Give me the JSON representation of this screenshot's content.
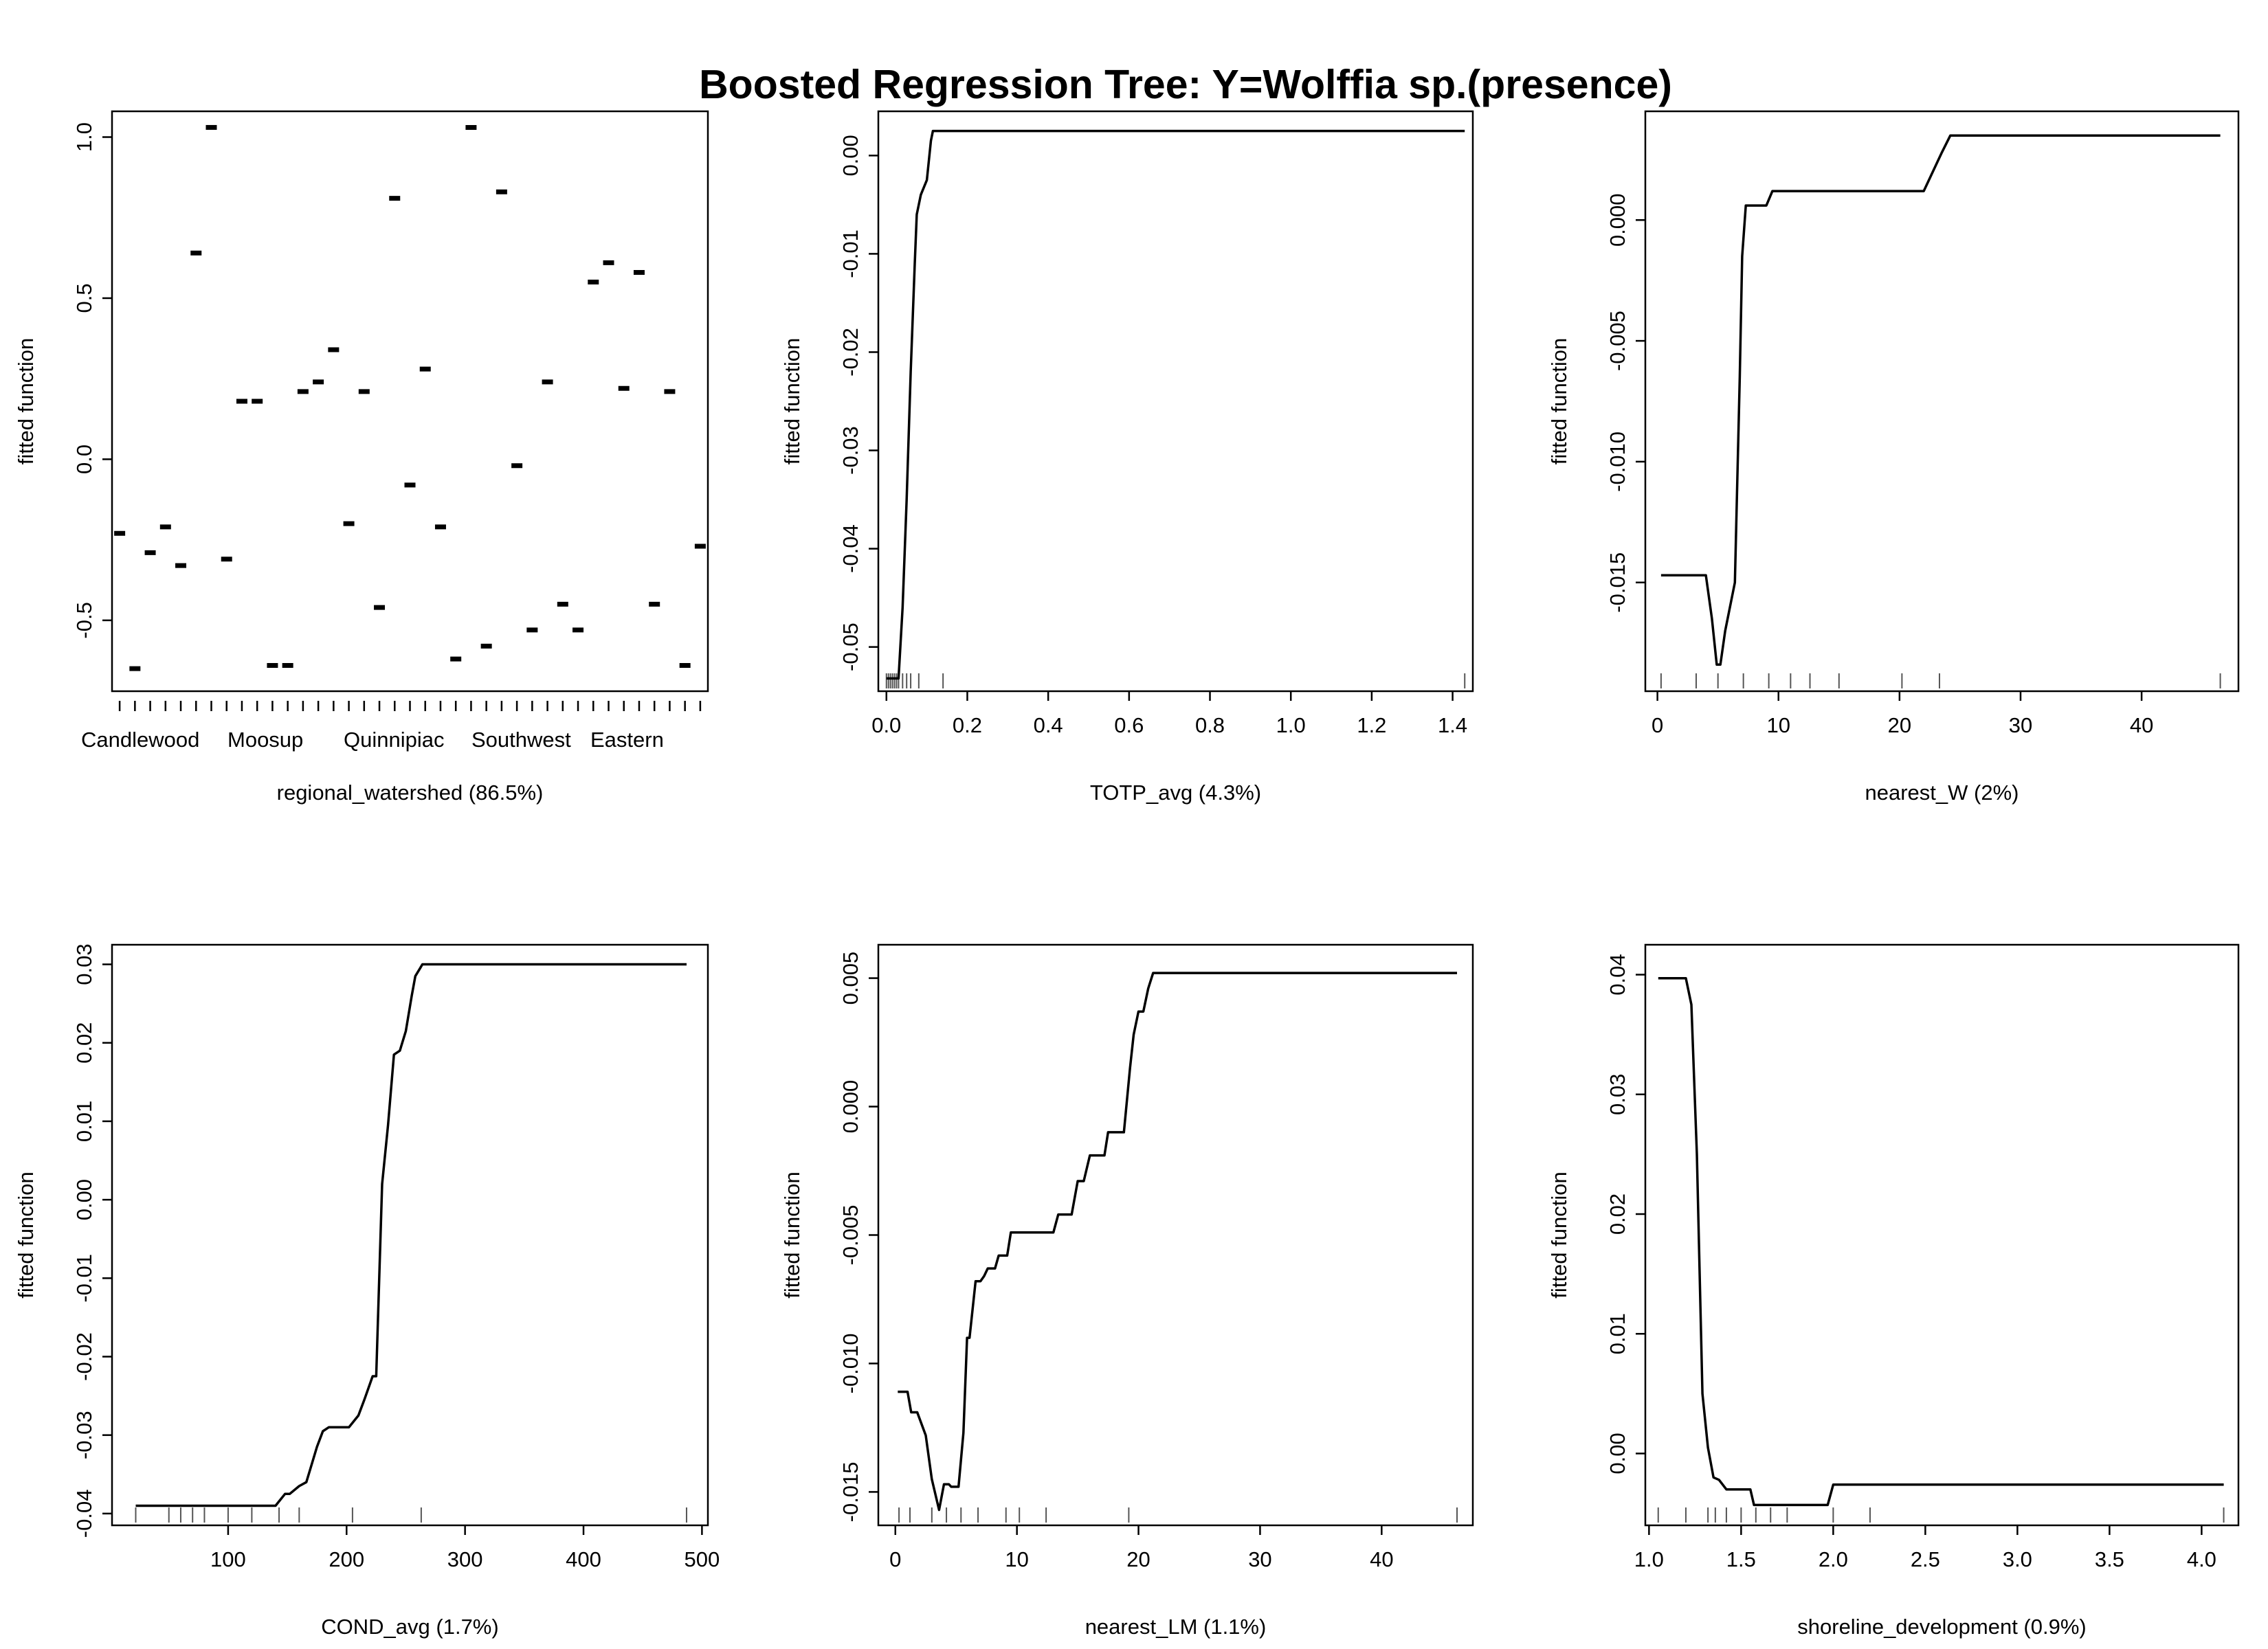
{
  "title": "Boosted Regression Tree: Y=Wolffia sp.(presence)",
  "y_axis_label": "fitted function",
  "chart_data": [
    {
      "type": "scatter",
      "xlabel": "regional_watershed  (86.5%)",
      "ylabel": "fitted function",
      "ylim": [
        -0.72,
        1.08
      ],
      "yticks": [
        -0.5,
        0.0,
        0.5,
        1.0
      ],
      "ytick_labels": [
        "-0.5",
        "0.0",
        "0.5",
        "1.0"
      ],
      "category_labels": [
        "Candlewood",
        "Moosup",
        "Quinnipiac",
        "Southwest",
        "Eastern"
      ],
      "values": [
        -0.23,
        -0.65,
        -0.29,
        -0.21,
        -0.33,
        0.64,
        1.03,
        -0.31,
        0.18,
        0.18,
        -0.64,
        -0.64,
        0.21,
        0.24,
        0.34,
        -0.2,
        0.21,
        -0.46,
        0.81,
        -0.08,
        0.28,
        -0.21,
        -0.62,
        1.03,
        -0.58,
        0.83,
        -0.02,
        -0.53,
        0.24,
        -0.45,
        -0.53,
        0.55,
        0.61,
        0.22,
        0.58,
        -0.45,
        0.21,
        -0.64,
        -0.27
      ]
    },
    {
      "type": "line",
      "xlabel": "TOTP_avg  (4.3%)",
      "ylabel": "fitted function",
      "xlim": [
        -0.02,
        1.45
      ],
      "ylim": [
        -0.0545,
        0.0045
      ],
      "xticks": [
        0.0,
        0.2,
        0.4,
        0.6,
        0.8,
        1.0,
        1.2,
        1.4
      ],
      "xtick_labels": [
        "0.0",
        "0.2",
        "0.4",
        "0.6",
        "0.8",
        "1.0",
        "1.2",
        "1.4"
      ],
      "yticks": [
        -0.05,
        -0.04,
        -0.03,
        -0.02,
        -0.01,
        0.0
      ],
      "ytick_labels": [
        "-0.05",
        "-0.04",
        "-0.03",
        "-0.02",
        "-0.01",
        "0.00"
      ],
      "x": [
        0.0,
        0.03,
        0.04,
        0.05,
        0.06,
        0.07,
        0.075,
        0.085,
        0.1,
        0.11,
        0.115,
        1.43
      ],
      "y": [
        -0.0532,
        -0.0532,
        -0.046,
        -0.035,
        -0.022,
        -0.011,
        -0.006,
        -0.004,
        -0.0025,
        0.0015,
        0.0025,
        0.0025
      ],
      "rug": [
        0.0,
        0.005,
        0.01,
        0.015,
        0.02,
        0.025,
        0.03,
        0.04,
        0.05,
        0.06,
        0.08,
        0.14,
        1.43
      ]
    },
    {
      "type": "line",
      "xlabel": "nearest_W  (2%)",
      "ylabel": "fitted function",
      "xlim": [
        -1,
        48
      ],
      "ylim": [
        -0.0195,
        0.0045
      ],
      "xticks": [
        0,
        10,
        20,
        30,
        40
      ],
      "xtick_labels": [
        "0",
        "10",
        "20",
        "30",
        "40"
      ],
      "yticks": [
        -0.015,
        -0.01,
        -0.005,
        0.0
      ],
      "ytick_labels": [
        "-0.015",
        "-0.010",
        "-0.005",
        "0.000"
      ],
      "x": [
        0.3,
        4.0,
        4.5,
        4.9,
        5.2,
        5.6,
        6.4,
        6.8,
        7.0,
        7.3,
        8.0,
        9.0,
        9.5,
        12,
        20,
        22,
        23.5,
        24.2,
        46.5
      ],
      "y": [
        -0.0147,
        -0.0147,
        -0.0165,
        -0.0184,
        -0.0184,
        -0.017,
        -0.015,
        -0.0065,
        -0.0015,
        0.0006,
        0.0006,
        0.0006,
        0.0012,
        0.0012,
        0.0012,
        0.0012,
        0.0028,
        0.0035,
        0.0035
      ],
      "rug": [
        0.3,
        3.2,
        5.0,
        7.1,
        9.2,
        11.0,
        12.6,
        15.0,
        20.2,
        23.3,
        46.5
      ]
    },
    {
      "type": "line",
      "xlabel": "COND_avg  (1.7%)",
      "ylabel": "fitted function",
      "xlim": [
        2,
        505
      ],
      "ylim": [
        -0.0415,
        0.0325
      ],
      "xticks": [
        100,
        200,
        300,
        400,
        500
      ],
      "xtick_labels": [
        "100",
        "200",
        "300",
        "400",
        "500"
      ],
      "yticks": [
        -0.04,
        -0.03,
        -0.02,
        -0.01,
        0.0,
        0.01,
        0.02,
        0.03
      ],
      "ytick_labels": [
        "-0.04",
        "-0.03",
        "-0.02",
        "-0.01",
        "0.00",
        "0.01",
        "0.02",
        "0.03"
      ],
      "x": [
        22,
        140,
        148,
        152,
        160,
        166,
        170,
        175,
        180,
        185,
        202,
        210,
        215,
        222,
        225,
        230,
        235,
        240,
        245,
        250,
        255,
        258,
        262,
        264,
        268,
        487
      ],
      "y": [
        -0.039,
        -0.039,
        -0.0375,
        -0.0375,
        -0.0365,
        -0.036,
        -0.034,
        -0.0315,
        -0.0295,
        -0.029,
        -0.029,
        -0.0275,
        -0.0255,
        -0.0225,
        -0.0225,
        0.002,
        0.0095,
        0.0185,
        0.019,
        0.0215,
        0.026,
        0.0285,
        0.0295,
        0.03,
        0.03,
        0.03
      ],
      "rug": [
        22,
        50,
        60,
        70,
        80,
        100,
        120,
        143,
        160,
        205,
        263,
        487
      ]
    },
    {
      "type": "line",
      "xlabel": "nearest_LM  (1.1%)",
      "ylabel": "fitted function",
      "xlim": [
        -1.4,
        47.5
      ],
      "ylim": [
        -0.0163,
        0.0063
      ],
      "xticks": [
        0,
        10,
        20,
        30,
        40
      ],
      "xtick_labels": [
        "0",
        "10",
        "20",
        "30",
        "40"
      ],
      "yticks": [
        -0.015,
        -0.01,
        -0.005,
        0.0,
        0.005
      ],
      "ytick_labels": [
        "-0.015",
        "-0.010",
        "-0.005",
        "0.000",
        "0.005"
      ],
      "x": [
        0.2,
        1.0,
        1.3,
        1.8,
        2.5,
        3.0,
        3.6,
        4.0,
        4.4,
        4.6,
        5.2,
        5.6,
        5.9,
        6.1,
        6.6,
        7.0,
        7.3,
        7.6,
        8.2,
        8.5,
        9.2,
        9.5,
        13,
        13.4,
        14.5,
        15.0,
        15.5,
        16.0,
        16.5,
        17.2,
        17.5,
        18.8,
        19.3,
        19.6,
        20.0,
        20.4,
        20.8,
        21.2,
        46.2
      ],
      "y": [
        -0.0111,
        -0.0111,
        -0.0119,
        -0.0119,
        -0.0128,
        -0.0145,
        -0.0157,
        -0.0147,
        -0.0147,
        -0.0148,
        -0.0148,
        -0.0127,
        -0.009,
        -0.009,
        -0.0068,
        -0.0068,
        -0.0066,
        -0.0063,
        -0.0063,
        -0.0058,
        -0.0058,
        -0.0049,
        -0.0049,
        -0.0042,
        -0.0042,
        -0.0029,
        -0.0029,
        -0.0019,
        -0.0019,
        -0.0019,
        -0.001,
        -0.001,
        0.0015,
        0.0028,
        0.0037,
        0.0037,
        0.0046,
        0.0052,
        0.0052
      ],
      "rug": [
        0.3,
        1.2,
        3.0,
        4.2,
        5.4,
        6.8,
        9.1,
        10.2,
        12.4,
        19.2,
        46.2
      ]
    },
    {
      "type": "line",
      "xlabel": "shoreline_development  (0.9%)",
      "ylabel": "fitted function",
      "xlim": [
        0.98,
        4.2
      ],
      "ylim": [
        -0.006,
        0.0425
      ],
      "xticks": [
        1.0,
        1.5,
        2.0,
        2.5,
        3.0,
        3.5,
        4.0
      ],
      "xtick_labels": [
        "1.0",
        "1.5",
        "2.0",
        "2.5",
        "3.0",
        "3.5",
        "4.0"
      ],
      "yticks": [
        0.0,
        0.01,
        0.02,
        0.03,
        0.04
      ],
      "ytick_labels": [
        "0.00",
        "0.01",
        "0.02",
        "0.03",
        "0.04"
      ],
      "x": [
        1.05,
        1.2,
        1.23,
        1.26,
        1.29,
        1.32,
        1.35,
        1.38,
        1.42,
        1.55,
        1.57,
        1.97,
        2.0,
        4.12
      ],
      "y": [
        0.0397,
        0.0397,
        0.0375,
        0.025,
        0.005,
        0.0005,
        -0.002,
        -0.0022,
        -0.003,
        -0.003,
        -0.0043,
        -0.0043,
        -0.0026,
        -0.0026
      ],
      "rug": [
        1.05,
        1.2,
        1.32,
        1.36,
        1.42,
        1.5,
        1.58,
        1.66,
        1.75,
        2.0,
        2.2,
        4.12
      ]
    }
  ]
}
